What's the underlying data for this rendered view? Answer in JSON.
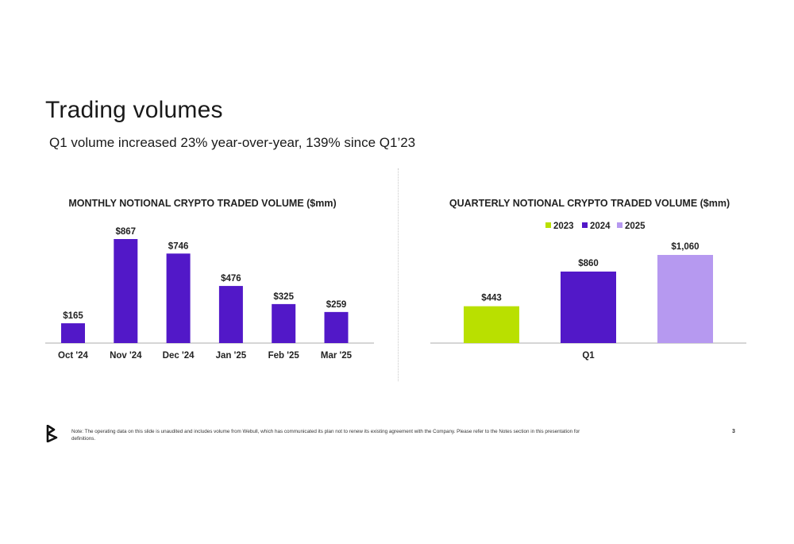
{
  "slide": {
    "title": "Trading volumes",
    "subtitle": "Q1 volume increased 23% year-over-year, 139% since Q1’23",
    "footnote": "Note: The operating data on this slide is unaudited and includes volume from Webull, which has communicated its plan not to renew its existing agreement with the Company. Please refer to the Notes section in this presentation for definitions.",
    "page_number": "3",
    "logo_icon": "bakkt-logo-icon"
  },
  "chart_data": [
    {
      "type": "bar",
      "title": "MONTHLY NOTIONAL CRYPTO TRADED VOLUME ($mm)",
      "categories": [
        "Oct '24",
        "Nov '24",
        "Dec '24",
        "Jan '25",
        "Feb '25",
        "Mar '25"
      ],
      "values": [
        165,
        867,
        746,
        476,
        325,
        259
      ],
      "data_labels": [
        "$165",
        "$867",
        "$746",
        "$476",
        "$325",
        "$259"
      ],
      "color": "#5218c8",
      "xlabel": "",
      "ylabel": "",
      "ylim": [
        0,
        867
      ],
      "grid": false,
      "legend": "none"
    },
    {
      "type": "bar",
      "title": "QUARTERLY NOTIONAL CRYPTO TRADED VOLUME ($mm)",
      "categories": [
        "Q1"
      ],
      "series": [
        {
          "name": "2023",
          "values": [
            443
          ],
          "data_labels": [
            "$443"
          ],
          "color": "#b9e000"
        },
        {
          "name": "2024",
          "values": [
            860
          ],
          "data_labels": [
            "$860"
          ],
          "color": "#5218c8"
        },
        {
          "name": "2025",
          "values": [
            1060
          ],
          "data_labels": [
            "$1,060"
          ],
          "color": "#b699f0"
        }
      ],
      "xlabel": "",
      "ylabel": "",
      "ylim": [
        0,
        1060
      ],
      "grid": false,
      "legend": "top-center"
    }
  ]
}
